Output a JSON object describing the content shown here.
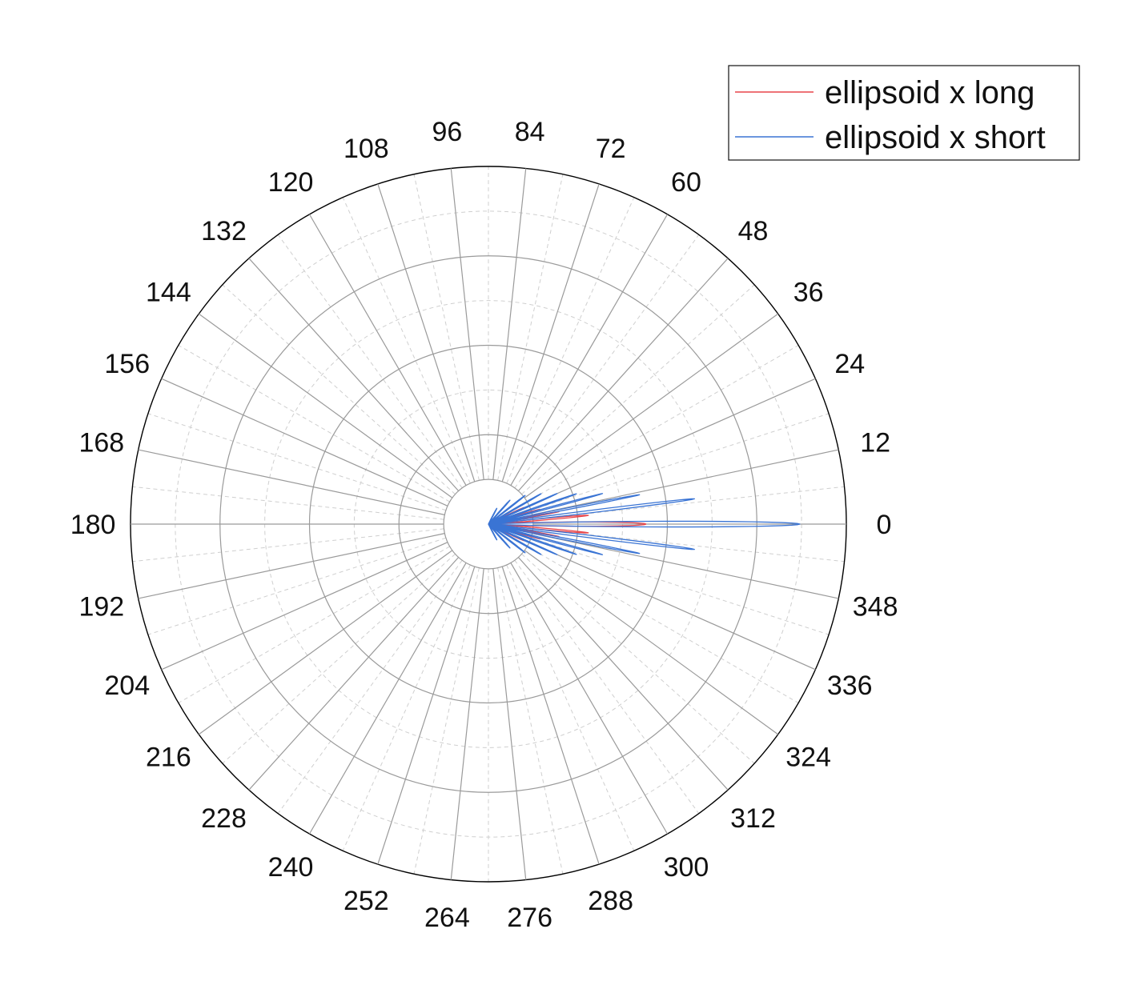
{
  "chart_data": {
    "type": "line",
    "coordinate_system": "polar",
    "angle_unit": "degrees",
    "angle_direction": "counterclockwise",
    "zero_direction": "right",
    "angular_ticks": [
      0,
      12,
      24,
      36,
      48,
      60,
      72,
      84,
      96,
      108,
      120,
      132,
      144,
      156,
      168,
      180,
      192,
      204,
      216,
      228,
      240,
      252,
      264,
      276,
      288,
      300,
      312,
      324,
      336,
      348
    ],
    "angular_minor_step": 6,
    "radial_range": [
      0,
      1
    ],
    "radial_major_rings": [
      0.125,
      0.25,
      0.5,
      0.75,
      1.0
    ],
    "radial_minor_rings": [
      0.375,
      0.625,
      0.875
    ],
    "radial_tick_labels_shown": false,
    "grid": true,
    "legend_position": "top-right",
    "series": [
      {
        "name": "ellipsoid x long",
        "color": "#e8454a",
        "lobes": [
          {
            "angle": 0,
            "r": 0.44,
            "halfwidth": 2.2
          },
          {
            "angle": 5,
            "r": 0.28,
            "halfwidth": 1.3
          },
          {
            "angle": -5,
            "r": 0.28,
            "halfwidth": 1.3
          },
          {
            "angle": 10,
            "r": 0.2,
            "halfwidth": 1.2
          },
          {
            "angle": -10,
            "r": 0.2,
            "halfwidth": 1.2
          },
          {
            "angle": 16,
            "r": 0.15,
            "halfwidth": 1.4
          },
          {
            "angle": -16,
            "r": 0.15,
            "halfwidth": 1.4
          },
          {
            "angle": 25,
            "r": 0.11,
            "halfwidth": 1.8
          },
          {
            "angle": -25,
            "r": 0.11,
            "halfwidth": 1.8
          }
        ]
      },
      {
        "name": "ellipsoid x short",
        "color": "#3a74d4",
        "lobes": [
          {
            "angle": 0,
            "r": 0.87,
            "halfwidth": 1.5
          },
          {
            "angle": 7,
            "r": 0.58,
            "halfwidth": 1.0
          },
          {
            "angle": -7,
            "r": 0.58,
            "halfwidth": 1.0
          },
          {
            "angle": 11,
            "r": 0.43,
            "halfwidth": 0.9
          },
          {
            "angle": -11,
            "r": 0.43,
            "halfwidth": 0.9
          },
          {
            "angle": 15,
            "r": 0.33,
            "halfwidth": 0.9
          },
          {
            "angle": -15,
            "r": 0.33,
            "halfwidth": 0.9
          },
          {
            "angle": 19,
            "r": 0.26,
            "halfwidth": 1.0
          },
          {
            "angle": -19,
            "r": 0.26,
            "halfwidth": 1.0
          },
          {
            "angle": 24,
            "r": 0.21,
            "halfwidth": 1.1
          },
          {
            "angle": -24,
            "r": 0.21,
            "halfwidth": 1.1
          },
          {
            "angle": 30,
            "r": 0.17,
            "halfwidth": 1.3
          },
          {
            "angle": -30,
            "r": 0.17,
            "halfwidth": 1.3
          },
          {
            "angle": 38,
            "r": 0.13,
            "halfwidth": 1.6
          },
          {
            "angle": -38,
            "r": 0.13,
            "halfwidth": 1.6
          },
          {
            "angle": 48,
            "r": 0.09,
            "halfwidth": 2.0
          },
          {
            "angle": -48,
            "r": 0.09,
            "halfwidth": 2.0
          },
          {
            "angle": 62,
            "r": 0.05,
            "halfwidth": 2.5
          },
          {
            "angle": -62,
            "r": 0.05,
            "halfwidth": 2.5
          }
        ]
      }
    ],
    "grid_colors": {
      "major": "#9a9a9a",
      "minor": "#cfcfcf",
      "outer": "#000000"
    }
  }
}
